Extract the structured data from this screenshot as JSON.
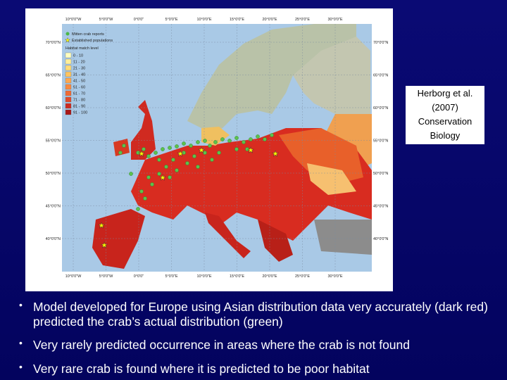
{
  "slide": {
    "map": {
      "legend": {
        "reports": "Mitten crab reports",
        "established": "Established populations",
        "title": "Habitat match level",
        "levels": [
          "0 - 10",
          "11 - 20",
          "21 - 30",
          "31 - 40",
          "41 - 50",
          "51 - 60",
          "61 - 70",
          "71 - 80",
          "81 - 90",
          "91 - 100"
        ]
      },
      "longitudes": [
        "10°0'0\"W",
        "5°0'0\"W",
        "0°0'0\"",
        "5°0'0\"E",
        "10°0'0\"E",
        "15°0'0\"E",
        "20°0'0\"E",
        "25°0'0\"E",
        "30°0'0\"E"
      ],
      "latitudes": [
        "70°0'0\"N",
        "65°0'0\"N",
        "60°0'0\"N",
        "55°0'0\"N",
        "50°0'0\"N",
        "45°0'0\"N",
        "40°0'0\"N"
      ]
    },
    "citation": [
      "Herborg et al.",
      "(2007)",
      "Conservation",
      "Biology"
    ],
    "bullets": [
      "Model developed for Europe using Asian distribution data very accurately (dark red) predicted the crab’s actual distribution (green)",
      "Very rarely predicted occurrence in areas where the crab is not found",
      "Very rare crab is found where it is predicted to be poor habitat"
    ]
  }
}
